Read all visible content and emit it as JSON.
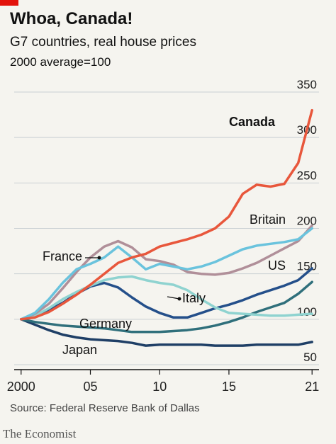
{
  "header": {
    "title": "Whoa, Canada!",
    "subtitle": "G7 countries, real house prices",
    "unit": "2000 average=100"
  },
  "footer": {
    "source": "Source: Federal Reserve Bank of Dallas",
    "brand": "The Economist"
  },
  "chart_data": {
    "type": "line",
    "title": "Whoa, Canada!",
    "subtitle": "G7 countries, real house prices",
    "ylabel": "2000 average=100",
    "xlim": [
      1999.5,
      2021.5
    ],
    "ylim": [
      50,
      350
    ],
    "yticks": [
      50,
      100,
      150,
      200,
      250,
      300,
      350
    ],
    "xticks": [
      {
        "value": 2000,
        "label": "2000"
      },
      {
        "value": 2005,
        "label": "05"
      },
      {
        "value": 2010,
        "label": "10"
      },
      {
        "value": 2015,
        "label": "15"
      },
      {
        "value": 2021,
        "label": "21"
      }
    ],
    "grid": true,
    "series": [
      {
        "name": "Japan",
        "color": "#1f3f66",
        "x": [
          2000,
          2001,
          2002,
          2003,
          2004,
          2005,
          2006,
          2007,
          2008,
          2009,
          2010,
          2011,
          2012,
          2013,
          2014,
          2015,
          2016,
          2017,
          2018,
          2019,
          2020,
          2021
        ],
        "y": [
          100,
          94,
          88,
          83,
          80,
          78,
          77,
          76,
          74,
          71,
          72,
          72,
          72,
          72,
          71,
          71,
          71,
          72,
          72,
          72,
          72,
          75
        ]
      },
      {
        "name": "Germany",
        "color": "#2f6f7b",
        "x": [
          2000,
          2001,
          2002,
          2003,
          2004,
          2005,
          2006,
          2007,
          2008,
          2009,
          2010,
          2011,
          2012,
          2013,
          2014,
          2015,
          2016,
          2017,
          2018,
          2019,
          2020,
          2021
        ],
        "y": [
          100,
          97,
          95,
          93,
          92,
          91,
          90,
          88,
          86,
          86,
          86,
          87,
          88,
          90,
          93,
          97,
          102,
          108,
          113,
          118,
          128,
          141
        ]
      },
      {
        "name": "US",
        "color": "#244f8a",
        "x": [
          2000,
          2001,
          2002,
          2003,
          2004,
          2005,
          2006,
          2007,
          2008,
          2009,
          2010,
          2011,
          2012,
          2013,
          2014,
          2015,
          2016,
          2017,
          2018,
          2019,
          2020,
          2021
        ],
        "y": [
          100,
          104,
          110,
          118,
          128,
          136,
          140,
          135,
          124,
          114,
          107,
          102,
          102,
          107,
          112,
          116,
          121,
          127,
          132,
          137,
          143,
          156
        ]
      },
      {
        "name": "Italy",
        "color": "#8fd3d0",
        "x": [
          2000,
          2001,
          2002,
          2003,
          2004,
          2005,
          2006,
          2007,
          2008,
          2009,
          2010,
          2011,
          2012,
          2013,
          2014,
          2015,
          2016,
          2017,
          2018,
          2019,
          2020,
          2021
        ],
        "y": [
          100,
          104,
          112,
          122,
          130,
          137,
          143,
          146,
          147,
          143,
          140,
          138,
          132,
          122,
          113,
          107,
          106,
          105,
          104,
          104,
          105,
          106
        ]
      },
      {
        "name": "France",
        "color": "#b08f99",
        "x": [
          2000,
          2001,
          2002,
          2003,
          2004,
          2005,
          2006,
          2007,
          2008,
          2009,
          2010,
          2011,
          2012,
          2013,
          2014,
          2015,
          2016,
          2017,
          2018,
          2019,
          2020,
          2021
        ],
        "y": [
          100,
          106,
          117,
          134,
          152,
          168,
          180,
          186,
          179,
          166,
          164,
          160,
          152,
          150,
          149,
          151,
          156,
          162,
          170,
          178,
          186,
          203
        ]
      },
      {
        "name": "Britain",
        "color": "#6ac3dd",
        "x": [
          2000,
          2001,
          2002,
          2003,
          2004,
          2005,
          2006,
          2007,
          2008,
          2009,
          2010,
          2011,
          2012,
          2013,
          2014,
          2015,
          2016,
          2017,
          2018,
          2019,
          2020,
          2021
        ],
        "y": [
          100,
          107,
          122,
          140,
          155,
          161,
          168,
          180,
          168,
          155,
          161,
          158,
          155,
          158,
          163,
          170,
          177,
          181,
          183,
          185,
          188,
          200
        ]
      },
      {
        "name": "Canada",
        "color": "#e8573c",
        "x": [
          2000,
          2001,
          2002,
          2003,
          2004,
          2005,
          2006,
          2007,
          2008,
          2009,
          2010,
          2011,
          2012,
          2013,
          2014,
          2015,
          2016,
          2017,
          2018,
          2019,
          2020,
          2021
        ],
        "y": [
          100,
          102,
          108,
          117,
          127,
          138,
          150,
          162,
          168,
          172,
          180,
          184,
          188,
          193,
          200,
          213,
          238,
          248,
          246,
          249,
          272,
          330
        ]
      }
    ],
    "labels": [
      {
        "series": "Canada",
        "text": "Canada",
        "bold": true
      },
      {
        "series": "Britain",
        "text": "Britain"
      },
      {
        "series": "France",
        "text": "France"
      },
      {
        "series": "US",
        "text": "US"
      },
      {
        "series": "Italy",
        "text": "Italy"
      },
      {
        "series": "Germany",
        "text": "Germany"
      },
      {
        "series": "Japan",
        "text": "Japan"
      }
    ]
  }
}
